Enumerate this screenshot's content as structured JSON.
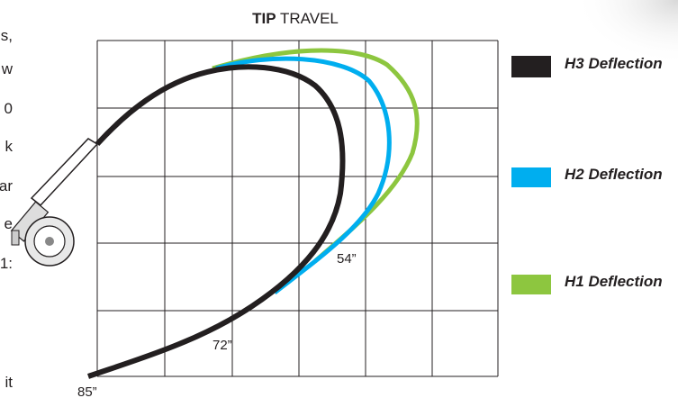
{
  "title": {
    "bold": "TIP",
    "rest": "TRAVEL"
  },
  "legend": [
    "H3 Deflection",
    "H2 Deflection",
    "H1 Deflection"
  ],
  "curve_labels": [
    "54”",
    "72”",
    "85”"
  ],
  "side_text_fragments": [
    "s,",
    "w",
    "0",
    "k",
    "ar",
    "e",
    "1:",
    "it"
  ]
}
